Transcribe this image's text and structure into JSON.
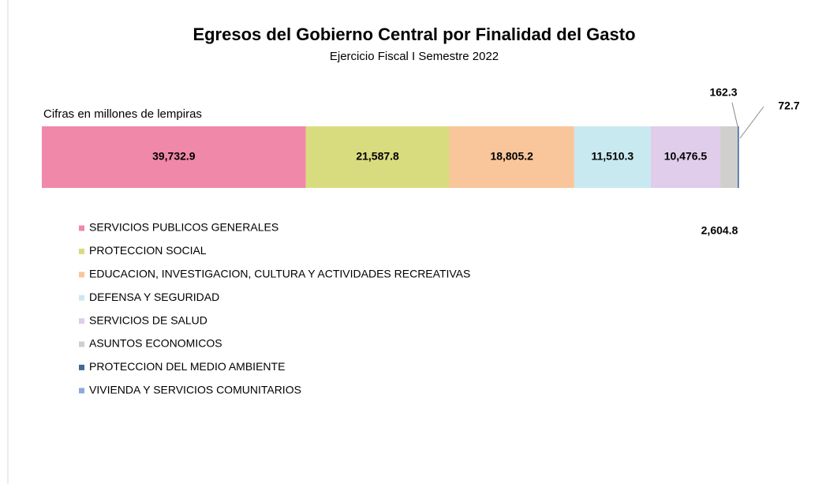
{
  "chart_data": {
    "type": "bar",
    "orientation": "horizontal",
    "stacked": true,
    "title": "Egresos del Gobierno Central por Finalidad del Gasto",
    "subtitle": "Ejercicio Fiscal I Semestre 2022",
    "annotation": "Cifras en millones de lempiras",
    "categories": [
      null
    ],
    "series": [
      {
        "name": "SERVICIOS PUBLICOS GENERALES",
        "color": "#f088aa",
        "values": [
          39732.9
        ],
        "value_labels": [
          "39,732.9"
        ]
      },
      {
        "name": "PROTECCION SOCIAL",
        "color": "#d9dc7e",
        "values": [
          21587.8
        ],
        "value_labels": [
          "21,587.8"
        ]
      },
      {
        "name": "EDUCACION, INVESTIGACION, CULTURA Y ACTIVIDADES RECREATIVAS",
        "color": "#f9c59a",
        "values": [
          18805.2
        ],
        "value_labels": [
          "18,805.2"
        ]
      },
      {
        "name": "DEFENSA Y SEGURIDAD",
        "color": "#c9e9f0",
        "values": [
          11510.3
        ],
        "value_labels": [
          "11,510.3"
        ]
      },
      {
        "name": "SERVICIOS DE SALUD",
        "color": "#e0cceb",
        "values": [
          10476.5
        ],
        "value_labels": [
          "10,476.5"
        ]
      },
      {
        "name": "ASUNTOS ECONOMICOS",
        "color": "#d0cfcd",
        "values": [
          2604.8
        ],
        "value_labels": [
          "2,604.8"
        ]
      },
      {
        "name": "PROTECCION DEL MEDIO AMBIENTE",
        "color": "#3e6b98",
        "values": [
          162.3
        ],
        "value_labels": [
          "162.3"
        ]
      },
      {
        "name": "VIVIENDA Y SERVICIOS COMUNITARIOS",
        "color": "#8eaadc",
        "values": [
          72.7
        ],
        "value_labels": [
          "72.7"
        ]
      }
    ],
    "legend": "bottom-left"
  }
}
